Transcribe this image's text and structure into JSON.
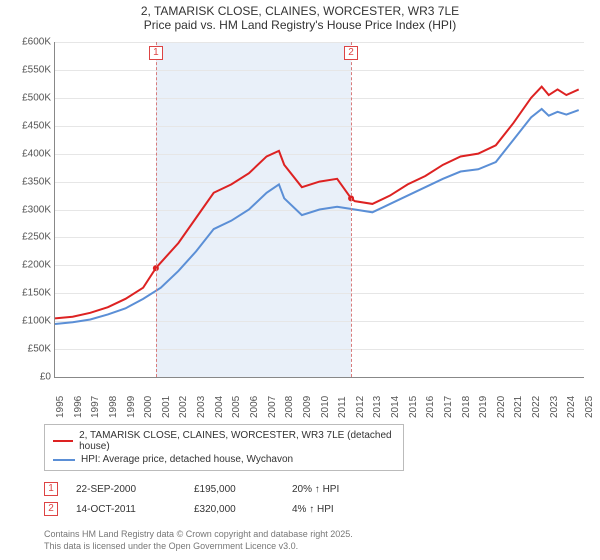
{
  "title": {
    "line1": "2, TAMARISK CLOSE, CLAINES, WORCESTER, WR3 7LE",
    "line2": "Price paid vs. HM Land Registry's House Price Index (HPI)"
  },
  "chart": {
    "type": "line",
    "background_color": "#ffffff",
    "grid_color": "#e6e6e6",
    "axis_color": "#888888",
    "x": {
      "min": 1995,
      "max": 2025,
      "tick_step": 1,
      "label_fontsize": 10
    },
    "y": {
      "min": 0,
      "max": 600000,
      "tick_step": 50000,
      "labels": [
        "£0",
        "£50K",
        "£100K",
        "£150K",
        "£200K",
        "£250K",
        "£300K",
        "£350K",
        "£400K",
        "£450K",
        "£500K",
        "£550K",
        "£600K"
      ],
      "label_fontsize": 10
    },
    "shaded_region": {
      "from": 2000.72,
      "to": 2011.79,
      "color": "#e9f0f9"
    },
    "markers": [
      {
        "id": "1",
        "x": 2000.72,
        "color": "#d44"
      },
      {
        "id": "2",
        "x": 2011.79,
        "color": "#d44"
      }
    ],
    "series": [
      {
        "name": "price_paid",
        "label": "2, TAMARISK CLOSE, CLAINES, WORCESTER, WR3 7LE (detached house)",
        "color": "#dd2222",
        "line_width": 2,
        "points": [
          [
            1995,
            105000
          ],
          [
            1996,
            108000
          ],
          [
            1997,
            115000
          ],
          [
            1998,
            125000
          ],
          [
            1999,
            140000
          ],
          [
            2000,
            160000
          ],
          [
            2000.72,
            195000
          ],
          [
            2001,
            205000
          ],
          [
            2002,
            240000
          ],
          [
            2003,
            285000
          ],
          [
            2004,
            330000
          ],
          [
            2005,
            345000
          ],
          [
            2006,
            365000
          ],
          [
            2007,
            395000
          ],
          [
            2007.7,
            405000
          ],
          [
            2008,
            380000
          ],
          [
            2009,
            340000
          ],
          [
            2010,
            350000
          ],
          [
            2011,
            355000
          ],
          [
            2011.79,
            320000
          ],
          [
            2012,
            315000
          ],
          [
            2013,
            310000
          ],
          [
            2014,
            325000
          ],
          [
            2015,
            345000
          ],
          [
            2016,
            360000
          ],
          [
            2017,
            380000
          ],
          [
            2018,
            395000
          ],
          [
            2019,
            400000
          ],
          [
            2020,
            415000
          ],
          [
            2021,
            455000
          ],
          [
            2022,
            500000
          ],
          [
            2022.6,
            520000
          ],
          [
            2023,
            505000
          ],
          [
            2023.5,
            515000
          ],
          [
            2024,
            505000
          ],
          [
            2024.7,
            515000
          ]
        ],
        "sale_dots": [
          {
            "x": 2000.72,
            "y": 195000,
            "color": "#dd2222"
          },
          {
            "x": 2011.79,
            "y": 320000,
            "color": "#dd2222"
          }
        ]
      },
      {
        "name": "hpi",
        "label": "HPI: Average price, detached house, Wychavon",
        "color": "#5b8fd6",
        "line_width": 2,
        "points": [
          [
            1995,
            95000
          ],
          [
            1996,
            98000
          ],
          [
            1997,
            103000
          ],
          [
            1998,
            112000
          ],
          [
            1999,
            123000
          ],
          [
            2000,
            140000
          ],
          [
            2001,
            160000
          ],
          [
            2002,
            190000
          ],
          [
            2003,
            225000
          ],
          [
            2004,
            265000
          ],
          [
            2005,
            280000
          ],
          [
            2006,
            300000
          ],
          [
            2007,
            330000
          ],
          [
            2007.7,
            345000
          ],
          [
            2008,
            320000
          ],
          [
            2009,
            290000
          ],
          [
            2010,
            300000
          ],
          [
            2011,
            305000
          ],
          [
            2012,
            300000
          ],
          [
            2013,
            295000
          ],
          [
            2014,
            310000
          ],
          [
            2015,
            325000
          ],
          [
            2016,
            340000
          ],
          [
            2017,
            355000
          ],
          [
            2018,
            368000
          ],
          [
            2019,
            372000
          ],
          [
            2020,
            385000
          ],
          [
            2021,
            425000
          ],
          [
            2022,
            465000
          ],
          [
            2022.6,
            480000
          ],
          [
            2023,
            468000
          ],
          [
            2023.5,
            475000
          ],
          [
            2024,
            470000
          ],
          [
            2024.7,
            478000
          ]
        ]
      }
    ]
  },
  "legend": {
    "items": [
      {
        "color": "#dd2222",
        "label": "2, TAMARISK CLOSE, CLAINES, WORCESTER, WR3 7LE (detached house)"
      },
      {
        "color": "#5b8fd6",
        "label": "HPI: Average price, detached house, Wychavon"
      }
    ]
  },
  "sales": [
    {
      "badge": "1",
      "date": "22-SEP-2000",
      "price": "£195,000",
      "delta": "20% ↑ HPI"
    },
    {
      "badge": "2",
      "date": "14-OCT-2011",
      "price": "£320,000",
      "delta": "4% ↑ HPI"
    }
  ],
  "footer": {
    "line1": "Contains HM Land Registry data © Crown copyright and database right 2025.",
    "line2": "This data is licensed under the Open Government Licence v3.0."
  }
}
